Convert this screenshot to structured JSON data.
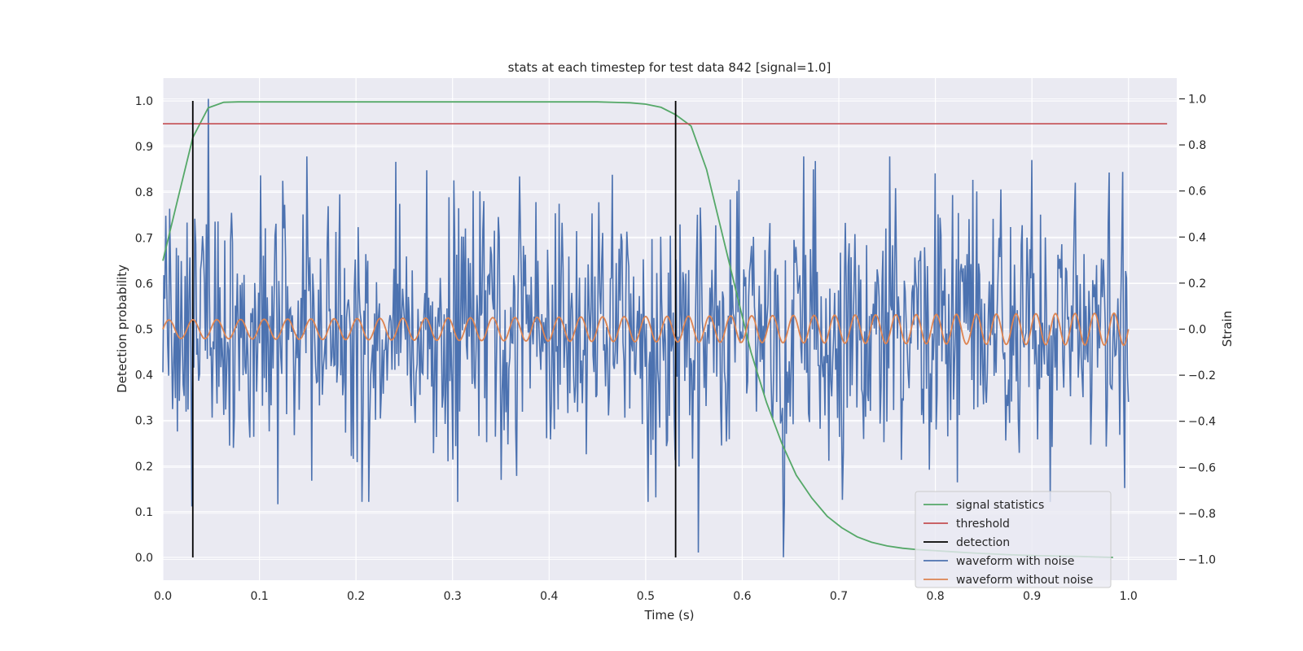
{
  "chart_data": {
    "type": "line",
    "title": "stats at each timestep for test data 842 [signal=1.0]",
    "xlabel": "Time (s)",
    "ylabel": "Detection probability",
    "y2label": "Strain",
    "xlim": [
      0.0,
      1.05
    ],
    "ylim": [
      -0.05,
      1.05
    ],
    "y2lim": [
      -1.09,
      1.09
    ],
    "xticks": [
      "0.0",
      "0.1",
      "0.2",
      "0.3",
      "0.4",
      "0.5",
      "0.6",
      "0.7",
      "0.8",
      "0.9",
      "1.0"
    ],
    "yticks": [
      "0.0",
      "0.1",
      "0.2",
      "0.3",
      "0.4",
      "0.5",
      "0.6",
      "0.7",
      "0.8",
      "0.9",
      "1.0"
    ],
    "y2ticks": [
      "−1.0",
      "−0.8",
      "−0.6",
      "−0.4",
      "−0.2",
      "0.0",
      "0.2",
      "0.4",
      "0.6",
      "0.8",
      "1.0"
    ],
    "grid": true,
    "legend_position": "lower-right",
    "series": [
      {
        "name": "signal statistics",
        "color": "#55a868",
        "axis": "left",
        "x": [
          0.0,
          0.016,
          0.031,
          0.047,
          0.063,
          0.078,
          0.1,
          0.2,
          0.3,
          0.4,
          0.45,
          0.484,
          0.5,
          0.516,
          0.531,
          0.547,
          0.563,
          0.578,
          0.594,
          0.609,
          0.625,
          0.641,
          0.656,
          0.672,
          0.688,
          0.703,
          0.719,
          0.734,
          0.75,
          0.766,
          0.781,
          0.797,
          0.813,
          0.828,
          0.844,
          0.875,
          0.9,
          0.95,
          0.984
        ],
        "y": [
          0.65,
          0.79,
          0.92,
          0.985,
          0.997,
          0.998,
          0.998,
          0.998,
          0.998,
          0.998,
          0.998,
          0.996,
          0.993,
          0.986,
          0.97,
          0.945,
          0.85,
          0.72,
          0.58,
          0.45,
          0.34,
          0.25,
          0.18,
          0.13,
          0.09,
          0.065,
          0.045,
          0.033,
          0.025,
          0.02,
          0.017,
          0.015,
          0.013,
          0.011,
          0.009,
          0.006,
          0.004,
          0.002,
          0.0
        ]
      },
      {
        "name": "threshold",
        "color": "#c44e52",
        "axis": "left",
        "x": [
          0.0,
          1.04
        ],
        "y": [
          0.95,
          0.95
        ]
      },
      {
        "name": "detection",
        "color": "#000000",
        "axis": "left",
        "segments": [
          {
            "x": 0.031,
            "y": [
              0.0,
              1.0
            ]
          },
          {
            "x": 0.531,
            "y": [
              0.0,
              1.0
            ]
          }
        ]
      },
      {
        "name": "waveform with noise",
        "color": "#4c72b0",
        "axis": "right",
        "t_start": 0.0,
        "t_end": 1.0,
        "n_points": 1000,
        "noise_std": 0.3,
        "highlights": [
          {
            "x": 0.03,
            "y": -0.77
          },
          {
            "x": 0.047,
            "y": 1.0
          },
          {
            "x": 0.119,
            "y": -0.76
          },
          {
            "x": 0.273,
            "y": 0.69
          },
          {
            "x": 0.555,
            "y": -0.97
          },
          {
            "x": 0.643,
            "y": -0.99
          },
          {
            "x": 0.996,
            "y": -0.69
          },
          {
            "x": 0.98,
            "y": 0.68
          }
        ]
      },
      {
        "name": "waveform without noise",
        "color": "#dd8452",
        "axis": "right",
        "t_start": 0.0,
        "t_end": 1.0,
        "amplitude_start": 0.04,
        "amplitude_end": 0.07,
        "freq_start_hz": 40,
        "freq_end_hz": 50
      }
    ]
  }
}
